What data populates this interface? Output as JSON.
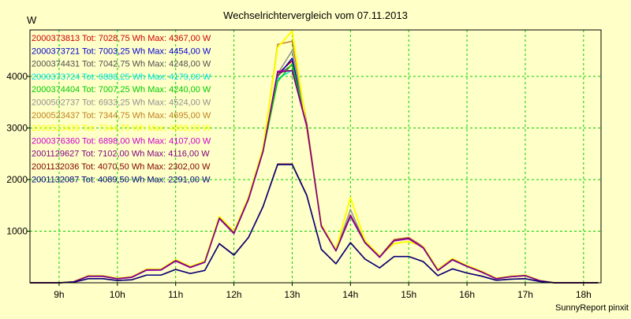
{
  "chart_data": {
    "type": "line",
    "title": "Wechselrichtervergleich vom 07.11.2013",
    "ylabel": "W",
    "xlabel": "",
    "footer": "SunnyReport pinxit",
    "xlim": [
      8.5,
      18.3
    ],
    "ylim": [
      0,
      4900
    ],
    "yticks": [
      1000,
      2000,
      3000,
      4000
    ],
    "yticklabels": [
      "1000",
      "2000",
      "3000",
      "4000"
    ],
    "xticks": [
      9,
      10,
      11,
      12,
      13,
      14,
      15,
      16,
      17,
      18
    ],
    "xticklabels": [
      "9h",
      "10h",
      "11h",
      "12h",
      "13h",
      "14h",
      "15h",
      "16h",
      "17h",
      "18h"
    ],
    "grid": true,
    "legend_position": "top-left",
    "colors": {
      "background": "#ffffc8",
      "plot_background": "#ffffc8",
      "grid": "#00d000",
      "axis": "#000000"
    },
    "x": [
      8.5,
      8.75,
      9.0,
      9.25,
      9.5,
      9.75,
      10.0,
      10.25,
      10.5,
      10.75,
      11.0,
      11.25,
      11.5,
      11.75,
      12.0,
      12.25,
      12.5,
      12.75,
      13.0,
      13.25,
      13.5,
      13.75,
      14.0,
      14.25,
      14.5,
      14.75,
      15.0,
      15.25,
      15.5,
      15.75,
      16.0,
      16.25,
      16.5,
      16.75,
      17.0,
      17.25,
      17.5,
      17.75,
      18.0,
      18.25
    ],
    "series": [
      {
        "name": "2000373813 Tot: 7028,75 Wh Max: 4367,00 W",
        "color": "#cc0000",
        "values": [
          0,
          0,
          0,
          20,
          130,
          130,
          80,
          110,
          250,
          250,
          430,
          300,
          400,
          1250,
          960,
          1620,
          2550,
          4050,
          4300,
          3050,
          1100,
          620,
          1300,
          780,
          500,
          820,
          860,
          680,
          240,
          450,
          320,
          210,
          80,
          120,
          140,
          40,
          0,
          0,
          0,
          0
        ]
      },
      {
        "name": "2000373721 Tot: 7003,25 Wh Max: 4454,00 W",
        "color": "#0000cc",
        "values": [
          0,
          0,
          0,
          20,
          125,
          125,
          78,
          108,
          245,
          248,
          425,
          298,
          398,
          1245,
          955,
          1615,
          2545,
          4000,
          4350,
          3040,
          1100,
          620,
          1290,
          775,
          495,
          815,
          855,
          675,
          238,
          445,
          318,
          208,
          78,
          118,
          138,
          38,
          0,
          0,
          0,
          0
        ]
      },
      {
        "name": "2000374431 Tot: 7042,75 Wh Max: 4248,00 W",
        "color": "#505050",
        "values": [
          0,
          0,
          0,
          20,
          128,
          128,
          80,
          110,
          248,
          250,
          428,
          300,
          400,
          1248,
          958,
          1618,
          2548,
          4020,
          4220,
          3045,
          1100,
          620,
          1300,
          778,
          498,
          818,
          858,
          678,
          240,
          448,
          320,
          210,
          80,
          120,
          140,
          40,
          0,
          0,
          0,
          0
        ]
      },
      {
        "name": "2000373724 Tot: 6888,25 Wh Max: 4179,00 W",
        "color": "#00e0e0",
        "values": [
          0,
          0,
          0,
          20,
          122,
          122,
          76,
          106,
          240,
          244,
          420,
          294,
          394,
          1240,
          950,
          1610,
          2540,
          3950,
          4120,
          3020,
          1090,
          615,
          1280,
          770,
          490,
          810,
          850,
          670,
          235,
          440,
          315,
          205,
          76,
          116,
          136,
          36,
          0,
          0,
          0,
          0
        ]
      },
      {
        "name": "2000374404 Tot: 7007,25 Wh Max: 4240,00 W",
        "color": "#00cc00",
        "values": [
          0,
          0,
          0,
          20,
          126,
          126,
          78,
          108,
          246,
          248,
          426,
          298,
          398,
          1246,
          956,
          1616,
          2546,
          3900,
          4240,
          3042,
          1100,
          620,
          1295,
          776,
          496,
          816,
          856,
          676,
          238,
          446,
          318,
          208,
          78,
          118,
          138,
          38,
          0,
          0,
          0,
          0
        ]
      },
      {
        "name": "2000502737 Tot: 6933,25 Wh Max: 4524,00 W",
        "color": "#909090",
        "values": [
          0,
          0,
          0,
          20,
          124,
          124,
          77,
          107,
          243,
          246,
          423,
          296,
          396,
          1243,
          953,
          1613,
          2543,
          4050,
          4500,
          3030,
          1095,
          618,
          1420,
          773,
          493,
          813,
          853,
          673,
          236,
          443,
          316,
          206,
          77,
          117,
          137,
          37,
          0,
          0,
          0,
          0
        ]
      },
      {
        "name": "2000523437 Tot: 7344,75 Wh Max: 4695,00 W",
        "color": "#c08020",
        "values": [
          0,
          0,
          0,
          22,
          135,
          135,
          84,
          115,
          260,
          262,
          445,
          312,
          415,
          1280,
          990,
          1650,
          2600,
          4620,
          4680,
          3100,
          1120,
          630,
          1320,
          800,
          510,
          840,
          880,
          700,
          250,
          465,
          330,
          220,
          85,
          125,
          145,
          42,
          0,
          0,
          0,
          0
        ]
      },
      {
        "name": "2000523439 Tot: 7344,75 Wh Max: 4888,00 W",
        "color": "#ffff00",
        "values": [
          0,
          0,
          0,
          22,
          136,
          136,
          85,
          116,
          262,
          264,
          448,
          314,
          418,
          1285,
          995,
          1655,
          2610,
          4560,
          4880,
          3000,
          1130,
          640,
          1650,
          820,
          520,
          760,
          800,
          700,
          260,
          470,
          335,
          225,
          86,
          126,
          146,
          43,
          0,
          0,
          0,
          0
        ]
      },
      {
        "name": "2000376360 Tot: 6898,00 Wh Max: 4107,00 W",
        "color": "#cc00cc",
        "values": [
          0,
          0,
          0,
          20,
          123,
          123,
          76,
          106,
          242,
          245,
          422,
          295,
          395,
          1242,
          952,
          1612,
          2542,
          4100,
          4107,
          3025,
          1092,
          616,
          1285,
          772,
          492,
          812,
          852,
          672,
          236,
          442,
          316,
          206,
          76,
          116,
          136,
          36,
          0,
          0,
          0,
          0
        ]
      },
      {
        "name": "2001129627 Tot: 7102,00 Wh Max: 4116,00 W",
        "color": "#800080",
        "values": [
          0,
          0,
          0,
          20,
          130,
          130,
          81,
          111,
          252,
          254,
          432,
          302,
          402,
          1255,
          965,
          1625,
          2555,
          4080,
          4116,
          3055,
          1105,
          622,
          1305,
          782,
          502,
          822,
          862,
          682,
          242,
          452,
          322,
          212,
          81,
          121,
          141,
          41,
          0,
          0,
          0,
          0
        ]
      },
      {
        "name": "2001132036 Tot: 4070,50 Wh Max: 2302,00 W",
        "color": "#800000",
        "values": [
          0,
          0,
          0,
          10,
          80,
          80,
          45,
          60,
          150,
          150,
          260,
          180,
          240,
          760,
          540,
          880,
          1480,
          2300,
          2302,
          1700,
          650,
          370,
          780,
          460,
          290,
          510,
          510,
          410,
          140,
          270,
          190,
          130,
          50,
          70,
          80,
          25,
          0,
          0,
          0,
          0
        ]
      },
      {
        "name": "2001132087 Tot: 4089,50 Wh Max: 2291,00 W",
        "color": "#000080",
        "values": [
          0,
          0,
          0,
          10,
          78,
          78,
          44,
          58,
          148,
          148,
          258,
          178,
          238,
          755,
          535,
          875,
          1475,
          2290,
          2291,
          1690,
          645,
          368,
          775,
          458,
          288,
          508,
          508,
          408,
          138,
          268,
          188,
          128,
          48,
          68,
          78,
          24,
          0,
          0,
          0,
          0
        ]
      }
    ]
  }
}
